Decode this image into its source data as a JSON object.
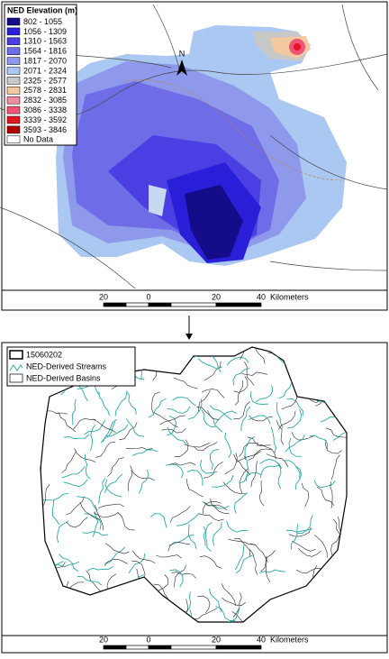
{
  "top_map": {
    "legend": {
      "title": "NED Elevation (m)",
      "items": [
        {
          "label": "802 - 1055",
          "color": "#150c8a"
        },
        {
          "label": "1056 - 1309",
          "color": "#2a1ed8"
        },
        {
          "label": "1310 - 1563",
          "color": "#4b3fe4"
        },
        {
          "label": "1564 - 1816",
          "color": "#6f6ce8"
        },
        {
          "label": "1817 - 2070",
          "color": "#8e99ec"
        },
        {
          "label": "2071 - 2324",
          "color": "#abc8f2"
        },
        {
          "label": "2325 - 2577",
          "color": "#c8c8c8"
        },
        {
          "label": "2578 - 2831",
          "color": "#f3c9a2"
        },
        {
          "label": "2832 - 3085",
          "color": "#f08ca2"
        },
        {
          "label": "3086 - 3338",
          "color": "#ef5474"
        },
        {
          "label": "3339 - 3592",
          "color": "#e61423"
        },
        {
          "label": "3593 - 3846",
          "color": "#ae0000"
        },
        {
          "label": "No Data",
          "color": "#ffffff"
        }
      ]
    },
    "north": "N",
    "scale": {
      "labels": [
        "20",
        "0",
        "20",
        "40"
      ],
      "unit": "Kilometers"
    }
  },
  "bottom_map": {
    "legend": {
      "items": [
        "15060202",
        "NED-Derived Streams",
        "NED-Derived Basins"
      ]
    },
    "scale": {
      "labels": [
        "20",
        "0",
        "20",
        "40"
      ],
      "unit": "Kilometers"
    }
  }
}
